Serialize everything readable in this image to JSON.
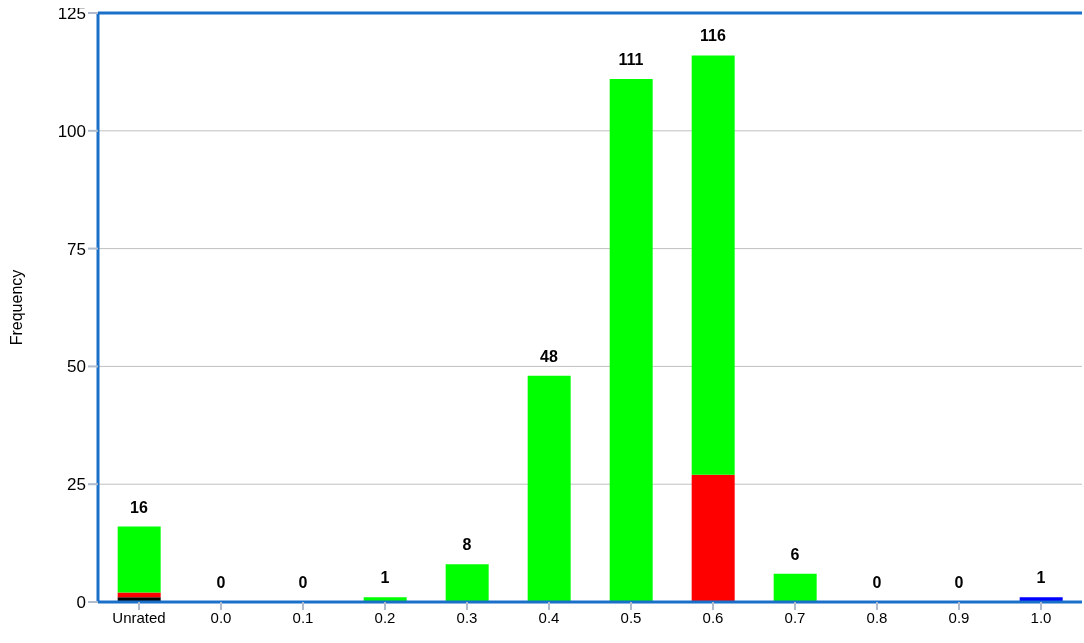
{
  "chart_data": {
    "type": "bar",
    "ylabel": "Frequency",
    "categories": [
      "Unrated",
      "0.0",
      "0.1",
      "0.2",
      "0.3",
      "0.4",
      "0.5",
      "0.6",
      "0.7",
      "0.8",
      "0.9",
      "1.0"
    ],
    "stacked": true,
    "series": [
      {
        "color": "#000000",
        "values": [
          1,
          0,
          0,
          0,
          0,
          0,
          0,
          0,
          0,
          0,
          0,
          0
        ]
      },
      {
        "color": "#ff0000",
        "values": [
          1,
          0,
          0,
          0,
          0,
          0,
          0,
          27,
          0,
          0,
          0,
          0
        ]
      },
      {
        "color": "#00ff00",
        "values": [
          14,
          0,
          0,
          1,
          8,
          48,
          111,
          89,
          6,
          0,
          0,
          0
        ]
      },
      {
        "color": "#0000ff",
        "values": [
          0,
          0,
          0,
          0,
          0,
          0,
          0,
          0,
          0,
          0,
          0,
          1
        ]
      }
    ],
    "totals": [
      "16",
      "0",
      "0",
      "1",
      "8",
      "48",
      "111",
      "116",
      "6",
      "0",
      "0",
      "1"
    ],
    "ylim": [
      0,
      125
    ],
    "yticks": [
      0,
      25,
      50,
      75,
      100,
      125
    ],
    "grid": "y",
    "legend": false
  }
}
